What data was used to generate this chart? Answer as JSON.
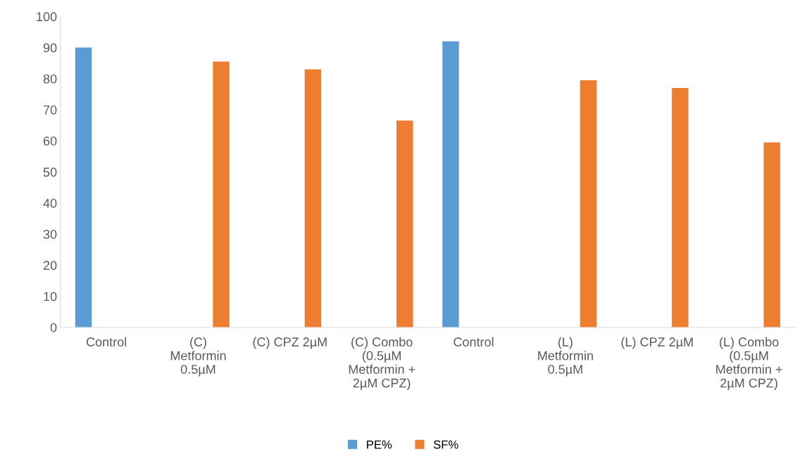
{
  "chart_data": {
    "type": "bar",
    "categories": [
      "Control",
      "(C)\nMetformin\n0.5µM",
      "(C) CPZ 2µM",
      "(C) Combo\n(0.5µM\nMetformin +\n2µM CPZ)",
      "Control",
      "(L)\nMetformin\n0.5µM",
      "(L) CPZ 2µM",
      "(L) Combo\n(0.5µM\nMetformin +\n2µM CPZ)"
    ],
    "series": [
      {
        "name": "PE%",
        "color": "#5b9bd5",
        "values": [
          90,
          null,
          null,
          null,
          92,
          null,
          null,
          null
        ]
      },
      {
        "name": "SF%",
        "color": "#ed7d31",
        "values": [
          null,
          85.5,
          83,
          66.5,
          null,
          79.5,
          77,
          59.5
        ]
      }
    ],
    "ylim": [
      0,
      100
    ],
    "yticks": [
      0,
      10,
      20,
      30,
      40,
      50,
      60,
      70,
      80,
      90,
      100
    ],
    "grid": false,
    "legend": "bottom"
  }
}
